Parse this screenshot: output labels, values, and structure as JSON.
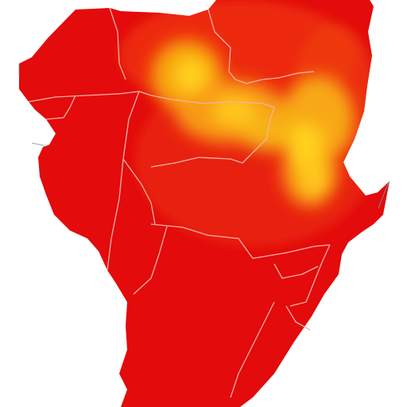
{
  "map": {
    "colors": {
      "background": "#ffffff",
      "low": "#e30b0b",
      "mid": "#f14a0c",
      "high": "#f7a411",
      "peak": "#ffd21f",
      "borders": "#f6b0a6",
      "coast_shadow": "#5fa7a9"
    }
  }
}
